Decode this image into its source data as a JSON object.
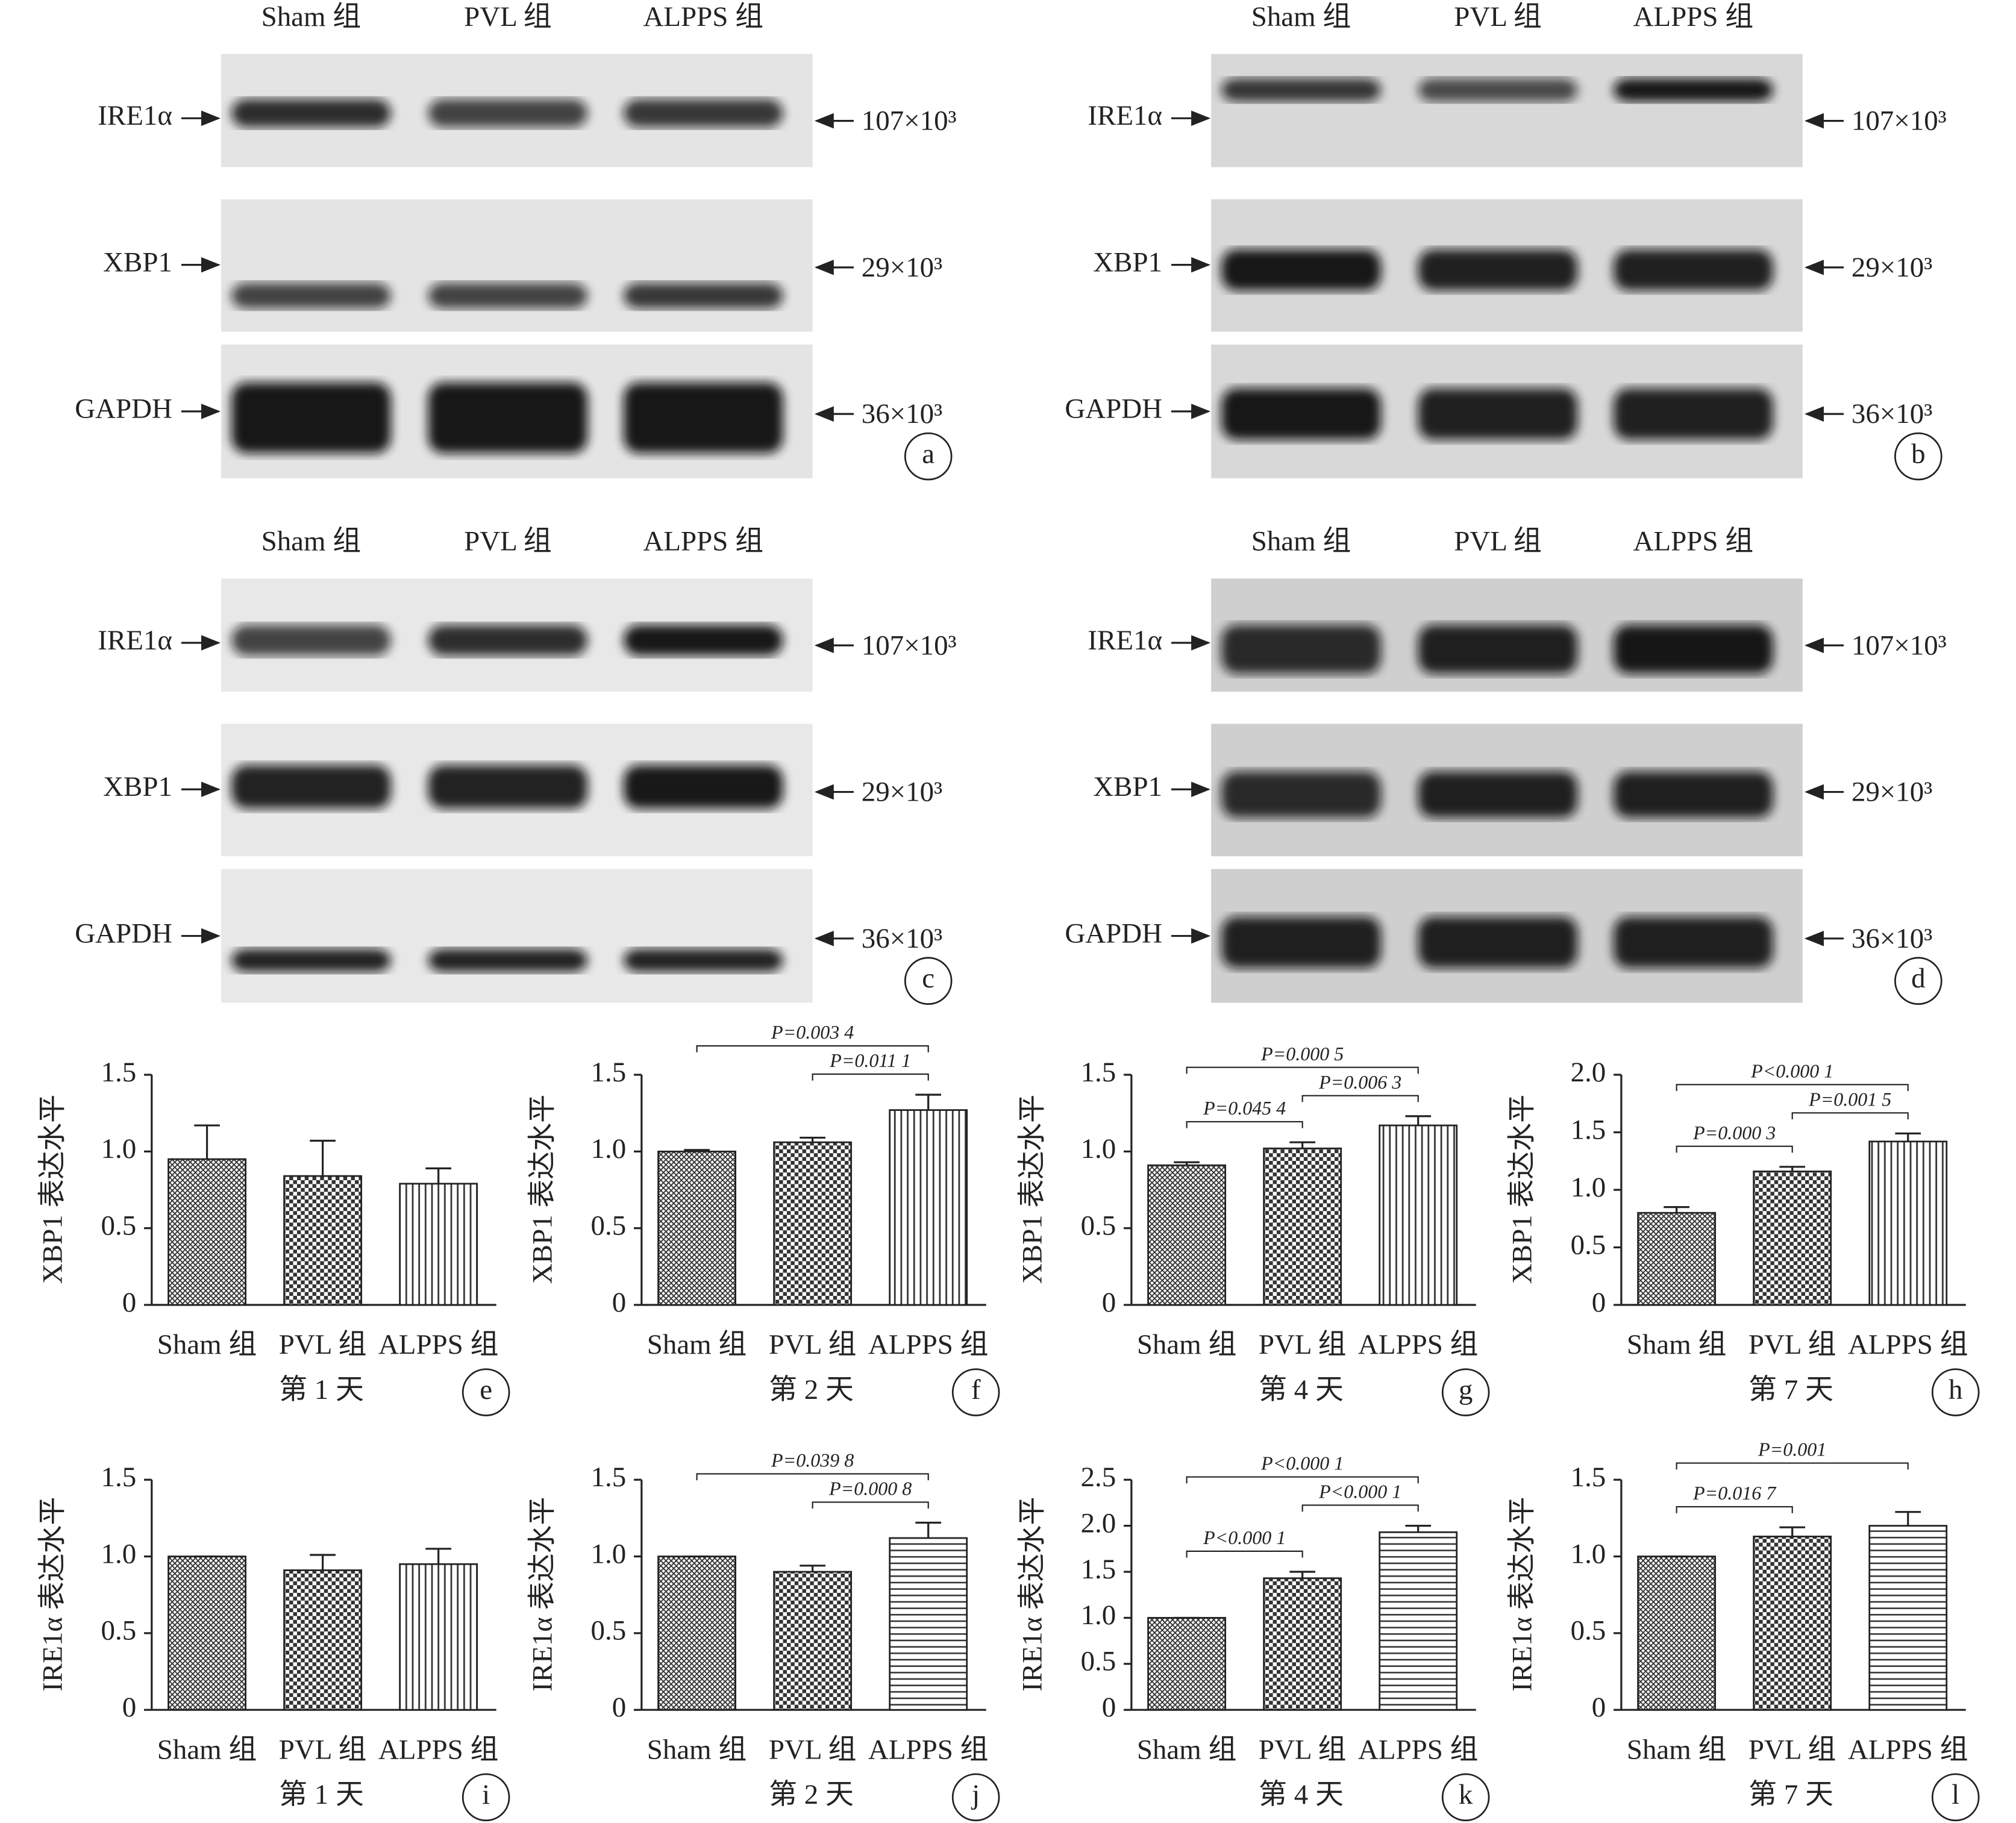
{
  "blots": [
    {
      "label": "a",
      "lanes": [
        "Sham 组",
        "PVL 组",
        "ALPPS 组"
      ],
      "rows": [
        {
          "protein": "IRE1α",
          "marker": "107×10³"
        },
        {
          "protein": "XBP1",
          "marker": "29×10³"
        },
        {
          "protein": "GAPDH",
          "marker": "36×10³"
        }
      ]
    },
    {
      "label": "b",
      "lanes": [
        "Sham 组",
        "PVL 组",
        "ALPPS 组"
      ],
      "rows": [
        {
          "protein": "IRE1α",
          "marker": "107×10³"
        },
        {
          "protein": "XBP1",
          "marker": "29×10³"
        },
        {
          "protein": "GAPDH",
          "marker": "36×10³"
        }
      ]
    },
    {
      "label": "c",
      "lanes": [
        "Sham 组",
        "PVL 组",
        "ALPPS 组"
      ],
      "rows": [
        {
          "protein": "IRE1α",
          "marker": "107×10³"
        },
        {
          "protein": "XBP1",
          "marker": "29×10³"
        },
        {
          "protein": "GAPDH",
          "marker": "36×10³"
        }
      ]
    },
    {
      "label": "d",
      "lanes": [
        "Sham 组",
        "PVL 组",
        "ALPPS 组"
      ],
      "rows": [
        {
          "protein": "IRE1α",
          "marker": "107×10³"
        },
        {
          "protein": "XBP1",
          "marker": "29×10³"
        },
        {
          "protein": "GAPDH",
          "marker": "36×10³"
        }
      ]
    }
  ],
  "chart_data": [
    {
      "type": "bar",
      "label": "e",
      "xlabel": "第 1 天",
      "ylabel": "XBP1 表达水平",
      "categories": [
        "Sham 组",
        "PVL 组",
        "ALPPS 组"
      ],
      "values": [
        0.95,
        0.84,
        0.79
      ],
      "errors": [
        0.22,
        0.23,
        0.1
      ],
      "ylim": [
        0,
        1.5
      ],
      "yticks": [
        0,
        0.5,
        {
          "value": 1,
          "label": "1.0"
        },
        1.5
      ],
      "patterns": [
        "crosshatch",
        "checker",
        "vlines"
      ],
      "annotations": []
    },
    {
      "type": "bar",
      "label": "f",
      "xlabel": "第 2 天",
      "ylabel": "XBP1 表达水平",
      "categories": [
        "Sham 组",
        "PVL 组",
        "ALPPS 组"
      ],
      "values": [
        1,
        1.06,
        1.27
      ],
      "errors": [
        0.01,
        0.03,
        0.1
      ],
      "ylim": [
        0,
        1.5
      ],
      "yticks": [
        0,
        0.5,
        {
          "value": 1,
          "label": "1.0"
        },
        1.5
      ],
      "patterns": [
        "crosshatch",
        "checker",
        "vlines"
      ],
      "annotations": [
        {
          "text": "P=0.011 1",
          "pair": [
            1,
            2
          ]
        },
        {
          "text": "P=0.003 4",
          "pair": [
            0,
            2
          ]
        }
      ]
    },
    {
      "type": "bar",
      "label": "g",
      "xlabel": "第 4 天",
      "ylabel": "XBP1 表达水平",
      "categories": [
        "Sham 组",
        "PVL 组",
        "ALPPS 组"
      ],
      "values": [
        0.91,
        1.02,
        1.17
      ],
      "errors": [
        0.02,
        0.04,
        0.06
      ],
      "ylim": [
        0,
        1.5
      ],
      "yticks": [
        0,
        0.5,
        {
          "value": 1,
          "label": "1.0"
        },
        1.5
      ],
      "patterns": [
        "crosshatch",
        "checker",
        "vlines"
      ],
      "annotations": [
        {
          "text": "P=0.045 4",
          "pair": [
            0,
            1
          ]
        },
        {
          "text": "P=0.006 3",
          "pair": [
            1,
            2
          ]
        },
        {
          "text": "P=0.000 5",
          "pair": [
            0,
            2
          ]
        }
      ]
    },
    {
      "type": "bar",
      "label": "h",
      "xlabel": "第 7 天",
      "ylabel": "XBP1 表达水平",
      "categories": [
        "Sham 组",
        "PVL 组",
        "ALPPS 组"
      ],
      "values": [
        0.8,
        1.16,
        1.42
      ],
      "errors": [
        0.05,
        0.04,
        0.07
      ],
      "ylim": [
        0,
        2
      ],
      "yticks": [
        0,
        0.5,
        {
          "value": 1,
          "label": "1.0"
        },
        1.5,
        {
          "value": 2,
          "label": "2.0"
        }
      ],
      "patterns": [
        "crosshatch",
        "checker",
        "vlines"
      ],
      "annotations": [
        {
          "text": "P=0.000 3",
          "pair": [
            0,
            1
          ]
        },
        {
          "text": "P=0.001 5",
          "pair": [
            1,
            2
          ]
        },
        {
          "text": "P<0.000 1",
          "pair": [
            0,
            2
          ]
        }
      ]
    },
    {
      "type": "bar",
      "label": "i",
      "xlabel": "第 1 天",
      "ylabel": "IRE1α 表达水平",
      "categories": [
        "Sham 组",
        "PVL 组",
        "ALPPS 组"
      ],
      "values": [
        1,
        0.91,
        0.95
      ],
      "errors": [
        0,
        0.1,
        0.1
      ],
      "ylim": [
        0,
        1.5
      ],
      "yticks": [
        0,
        0.5,
        {
          "value": 1,
          "label": "1.0"
        },
        1.5
      ],
      "patterns": [
        "crosshatch",
        "checker",
        "vlines"
      ],
      "annotations": []
    },
    {
      "type": "bar",
      "label": "j",
      "xlabel": "第 2 天",
      "ylabel": "IRE1α 表达水平",
      "categories": [
        "Sham 组",
        "PVL 组",
        "ALPPS 组"
      ],
      "values": [
        1,
        0.9,
        1.12
      ],
      "errors": [
        0,
        0.04,
        0.1
      ],
      "ylim": [
        0,
        1.5
      ],
      "yticks": [
        0,
        0.5,
        {
          "value": 1,
          "label": "1.0"
        },
        1.5
      ],
      "patterns": [
        "crosshatch",
        "checker",
        "hlines"
      ],
      "annotations": [
        {
          "text": "P=0.000 8",
          "pair": [
            1,
            2
          ]
        },
        {
          "text": "P=0.039 8",
          "pair": [
            0,
            2
          ]
        }
      ]
    },
    {
      "type": "bar",
      "label": "k",
      "xlabel": "第 4 天",
      "ylabel": "IRE1α 表达水平",
      "categories": [
        "Sham 组",
        "PVL 组",
        "ALPPS 组"
      ],
      "values": [
        1,
        1.43,
        1.93
      ],
      "errors": [
        0,
        0.07,
        0.07
      ],
      "ylim": [
        0,
        2.5
      ],
      "yticks": [
        0,
        0.5,
        {
          "value": 1,
          "label": "1.0"
        },
        1.5,
        {
          "value": 2,
          "label": "2.0"
        },
        2.5
      ],
      "patterns": [
        "crosshatch",
        "checker",
        "hlines"
      ],
      "annotations": [
        {
          "text": "P<0.000 1",
          "pair": [
            0,
            1
          ]
        },
        {
          "text": "P<0.000 1",
          "pair": [
            1,
            2
          ]
        },
        {
          "text": "P<0.000 1",
          "pair": [
            0,
            2
          ]
        }
      ]
    },
    {
      "type": "bar",
      "label": "l",
      "xlabel": "第 7 天",
      "ylabel": "IRE1α 表达水平",
      "categories": [
        "Sham 组",
        "PVL 组",
        "ALPPS 组"
      ],
      "values": [
        1,
        1.13,
        1.2
      ],
      "errors": [
        0,
        0.06,
        0.09
      ],
      "ylim": [
        0,
        1.5
      ],
      "yticks": [
        0,
        0.5,
        {
          "value": 1,
          "label": "1.0"
        },
        1.5
      ],
      "patterns": [
        "crosshatch",
        "checker",
        "hlines"
      ],
      "annotations": [
        {
          "text": "P=0.016 7",
          "pair": [
            0,
            1
          ]
        },
        {
          "text": "P=0.001",
          "pair": [
            0,
            2
          ]
        }
      ]
    }
  ]
}
